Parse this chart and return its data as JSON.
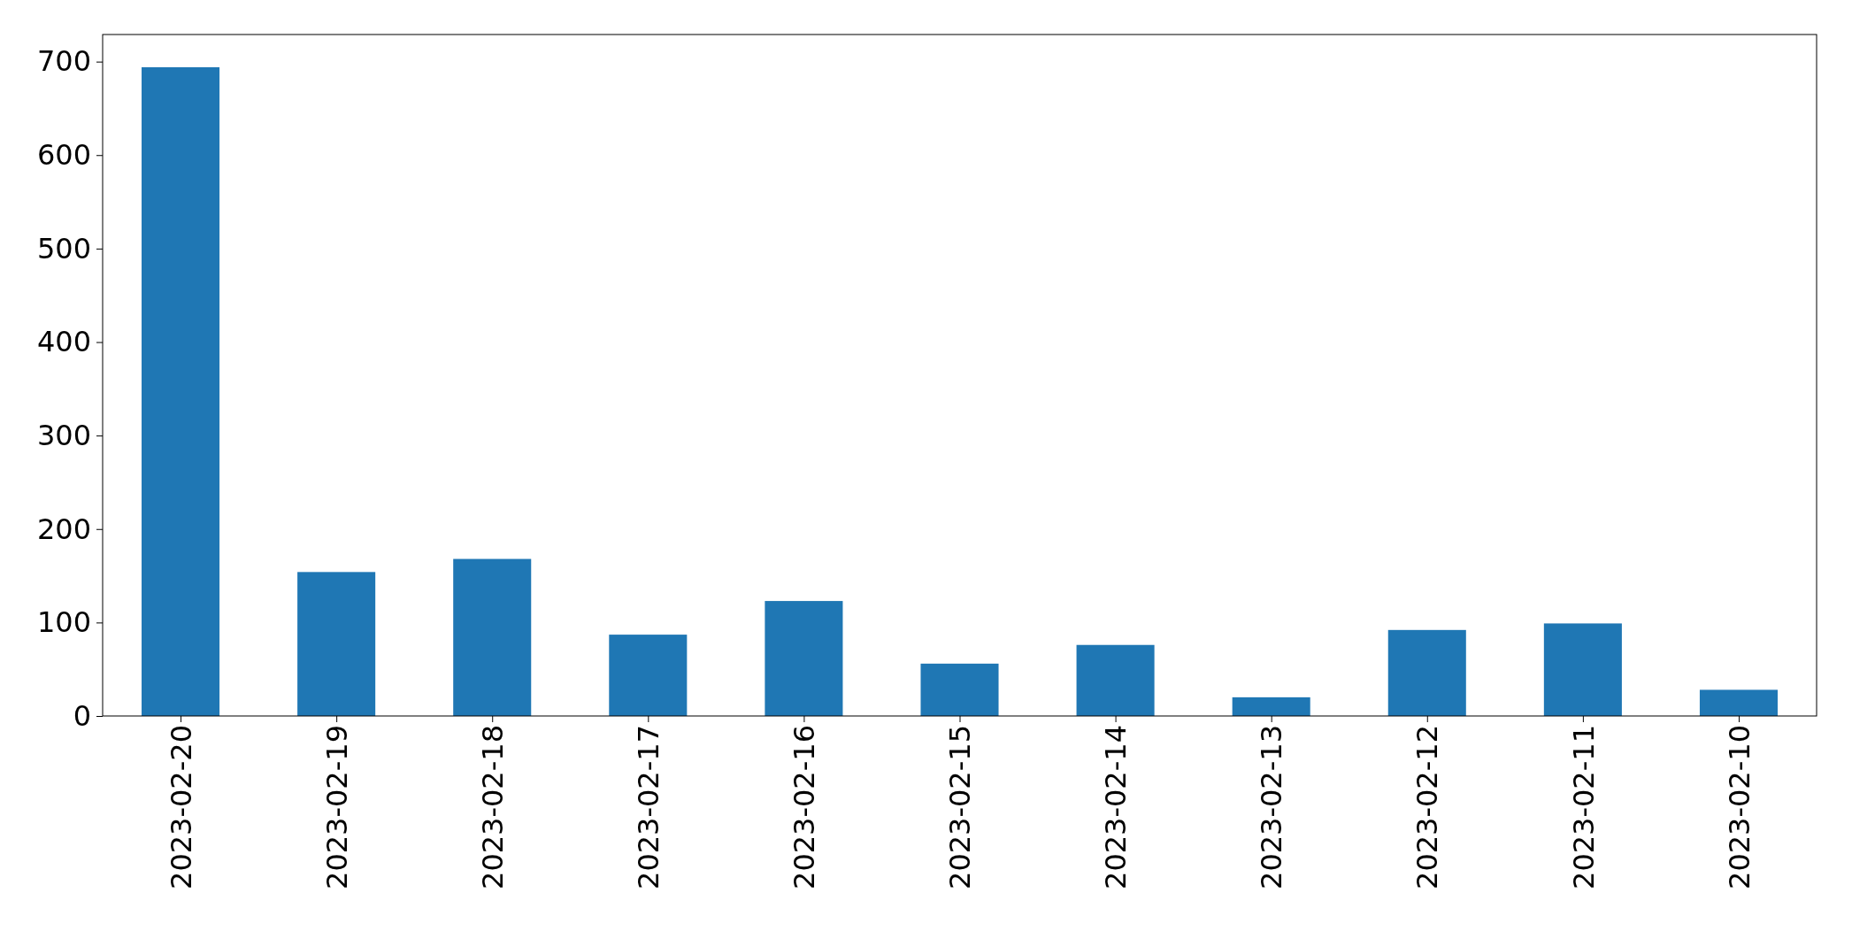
{
  "chart_data": {
    "type": "bar",
    "categories": [
      "2023-02-20",
      "2023-02-19",
      "2023-02-18",
      "2023-02-17",
      "2023-02-16",
      "2023-02-15",
      "2023-02-14",
      "2023-02-13",
      "2023-02-12",
      "2023-02-11",
      "2023-02-10"
    ],
    "values": [
      694,
      154,
      168,
      87,
      123,
      56,
      76,
      20,
      92,
      99,
      28
    ],
    "color": "#1f77b4",
    "ylim": [
      0,
      729
    ],
    "yticks": [
      0,
      100,
      200,
      300,
      400,
      500,
      600,
      700
    ],
    "grid": false
  }
}
